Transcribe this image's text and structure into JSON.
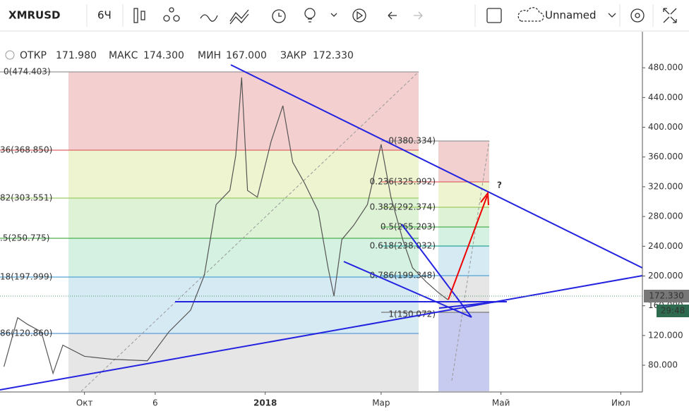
{
  "toolbar": {
    "symbol": "XMRUSD",
    "interval": "6Ч",
    "layout_name": "Unnamed"
  },
  "legend": {
    "open_label": "ОТКР",
    "open": "171.980",
    "high_label": "МАКС",
    "high": "174.300",
    "low_label": "МИН",
    "low": "167.000",
    "close_label": "ЗАКР",
    "close": "172.330"
  },
  "price_marker": {
    "price": "172.330",
    "countdown": "29:48"
  },
  "fib_1": [
    "0(474.403)",
    "36(368.850)",
    "82(303.551)",
    ".5(250.775)",
    "18(197.999)",
    "86(120.860)"
  ],
  "fib_2": [
    "0(380.334)",
    "0.236(325.992)",
    "0.382(292.374)",
    "0.5(265.203)",
    "0.618(238.032)",
    "0.786(199.348)",
    "1(150.072)"
  ],
  "question": "?",
  "chart_data": {
    "type": "line",
    "x": [
      -41,
      -34,
      -29,
      -22,
      -16,
      -11,
      0,
      14,
      32,
      43,
      54,
      61,
      67,
      74,
      77,
      80,
      83,
      88,
      95,
      101,
      106,
      112,
      119,
      124,
      127,
      131,
      137,
      144,
      151,
      156,
      162,
      167,
      174,
      180,
      185
    ],
    "series": [
      {
        "color": "#555555",
        "values": [
          78,
          144,
          135,
          125,
          69,
          107,
          92,
          88,
          86,
          125,
          154,
          201,
          296,
          315,
          362,
          467,
          315,
          306,
          381,
          429,
          353,
          325,
          287,
          211,
          173,
          249,
          268,
          296,
          377,
          306,
          249,
          211,
          192,
          178,
          168
        ]
      }
    ],
    "xlim": [
      -43,
      284
    ],
    "xticks": [
      {
        "value": 0,
        "label": "Окт"
      },
      {
        "value": 36,
        "label": "6"
      },
      {
        "value": 92,
        "label": "2018"
      },
      {
        "value": 151,
        "label": "Мар"
      },
      {
        "value": 212,
        "label": "Май"
      },
      {
        "value": 273,
        "label": "Июл"
      }
    ],
    "ylim": [
      45,
      519
    ],
    "yticks": [
      {
        "value": 80,
        "label": "80.000"
      },
      {
        "value": 120,
        "label": "120.000"
      },
      {
        "value": 160,
        "label": "160.000"
      },
      {
        "value": 200,
        "label": "200.000"
      },
      {
        "value": 240,
        "label": "240.000"
      },
      {
        "value": 280,
        "label": "280.000"
      },
      {
        "value": 320,
        "label": "320.000"
      },
      {
        "value": 360,
        "label": "360.000"
      },
      {
        "value": 400,
        "label": "400.000"
      },
      {
        "value": 440,
        "label": "440.000"
      },
      {
        "value": 480,
        "label": "480.000"
      }
    ]
  }
}
